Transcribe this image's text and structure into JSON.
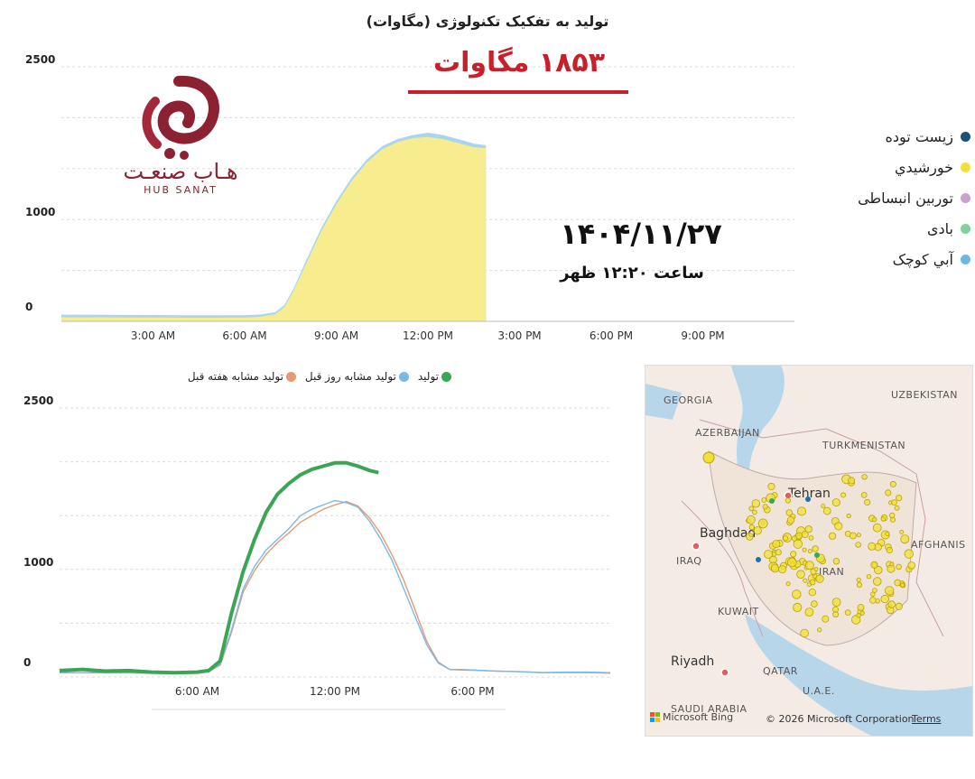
{
  "top_title": "تولید به تفکیک تکنولوژی (مگاوات)",
  "headline": "۱۸۵۳ مگاوات",
  "date": "۱۴۰۴/۱۱/۲۷",
  "time": "ساعت ۱۲:۲۰ ظهر",
  "logo": {
    "fa": "هـاب صنعـت",
    "en": "HUB SANAT"
  },
  "legend_top": [
    {
      "label": "زیست توده",
      "color": "#1f4e79"
    },
    {
      "label": "خورشيدي",
      "color": "#f2e03a"
    },
    {
      "label": "توربین انبساطی",
      "color": "#c9a0d0"
    },
    {
      "label": "بادی",
      "color": "#7fd39a"
    },
    {
      "label": "آبي كوچک",
      "color": "#6bb8e8"
    }
  ],
  "legend_bottom": [
    {
      "label": "تولید",
      "color": "#3aa655"
    },
    {
      "label": "تولید مشابه روز قبل",
      "color": "#7ab8e6"
    },
    {
      "label": "تولید مشابه هفته قبل",
      "color": "#e49a72"
    }
  ],
  "map": {
    "labels": [
      {
        "text": "GEORGIA",
        "cls": "country"
      },
      {
        "text": "AZERBAIJAN",
        "cls": "country"
      },
      {
        "text": "UZBEKISTAN",
        "cls": "country"
      },
      {
        "text": "TURKMENISTAN",
        "cls": "country"
      },
      {
        "text": "Tehran",
        "cls": "city"
      },
      {
        "text": "Baghdad",
        "cls": "city"
      },
      {
        "text": "IRAQ",
        "cls": "country"
      },
      {
        "text": "IRAN",
        "cls": "country"
      },
      {
        "text": "AFGHANIS",
        "cls": "country"
      },
      {
        "text": "KUWAIT",
        "cls": "country"
      },
      {
        "text": "Riyadh",
        "cls": "city"
      },
      {
        "text": "QATAR",
        "cls": "country"
      },
      {
        "text": "U.A.E.",
        "cls": "country"
      },
      {
        "text": "SAUDI ARABIA",
        "cls": "country"
      }
    ],
    "credit": "© 2026 Microsoft Corporation",
    "terms": "Terms",
    "bing": "Microsoft Bing"
  },
  "chart_data": [
    {
      "type": "area",
      "title": "تولید به تفکیک تکنولوژی (مگاوات)",
      "x_unit": "hour",
      "x_ticks": [
        "3:00 AM",
        "6:00 AM",
        "9:00 AM",
        "12:00 PM",
        "3:00 PM",
        "6:00 PM",
        "9:00 PM"
      ],
      "y_ticks": [
        "0",
        "1000",
        "2500"
      ],
      "ylim": [
        0,
        2500
      ],
      "xlim": [
        0,
        24
      ],
      "series": [
        {
          "name": "خورشيدي",
          "x": [
            0,
            1,
            2,
            3,
            4,
            5,
            6,
            6.5,
            7,
            7.3,
            7.6,
            8,
            8.5,
            9,
            9.5,
            10,
            10.5,
            11,
            11.5,
            12,
            12.5,
            13,
            13.5,
            13.9
          ],
          "y": [
            40,
            40,
            38,
            38,
            36,
            36,
            38,
            45,
            70,
            140,
            300,
            560,
            880,
            1150,
            1380,
            1560,
            1690,
            1760,
            1800,
            1810,
            1790,
            1750,
            1710,
            1700
          ]
        },
        {
          "name": "آبي كوچک",
          "x": [
            0,
            1,
            2,
            3,
            4,
            5,
            6,
            6.5,
            7,
            7.3,
            7.6,
            8,
            8.5,
            9,
            9.5,
            10,
            10.5,
            11,
            11.5,
            12,
            12.5,
            13,
            13.5,
            13.9
          ],
          "y": [
            65,
            65,
            63,
            62,
            60,
            60,
            60,
            66,
            90,
            160,
            320,
            590,
            910,
            1180,
            1410,
            1590,
            1720,
            1790,
            1830,
            1853,
            1830,
            1790,
            1745,
            1730
          ]
        }
      ]
    },
    {
      "type": "line",
      "x_ticks": [
        "6:00 AM",
        "12:00 PM",
        "6:00 PM"
      ],
      "y_ticks": [
        "0",
        "1000",
        "2500"
      ],
      "ylim": [
        0,
        2500
      ],
      "xlim": [
        0,
        24
      ],
      "series": [
        {
          "name": "تولید",
          "x": [
            0,
            1,
            2,
            3,
            4,
            5,
            6,
            6.5,
            7,
            7.5,
            8,
            8.5,
            9,
            9.5,
            10,
            10.5,
            11,
            11.5,
            12,
            12.5,
            13,
            13.5,
            13.9
          ],
          "y": [
            60,
            70,
            55,
            60,
            45,
            40,
            45,
            60,
            150,
            600,
            980,
            1280,
            1530,
            1700,
            1800,
            1880,
            1930,
            1960,
            1990,
            1990,
            1960,
            1920,
            1900
          ]
        },
        {
          "name": "تولید مشابه روز قبل",
          "x": [
            0,
            1,
            2,
            3,
            4,
            5,
            6,
            6.5,
            7,
            7.5,
            8,
            8.5,
            9,
            9.5,
            10,
            10.5,
            11,
            11.5,
            12,
            12.5,
            13,
            13.5,
            14,
            14.5,
            15,
            15.5,
            16,
            16.5,
            17,
            17.5,
            18,
            19,
            20,
            21,
            22,
            23,
            24
          ],
          "y": [
            40,
            40,
            38,
            38,
            36,
            36,
            38,
            50,
            120,
            440,
            820,
            1030,
            1180,
            1280,
            1380,
            1500,
            1560,
            1600,
            1640,
            1620,
            1580,
            1450,
            1280,
            1080,
            820,
            560,
            300,
            130,
            70,
            70,
            65,
            55,
            50,
            40,
            45,
            45,
            40
          ]
        },
        {
          "name": "تولید مشابه هفته قبل",
          "x": [
            0,
            1,
            2,
            3,
            4,
            5,
            6,
            6.5,
            7,
            7.5,
            8,
            8.5,
            9,
            9.5,
            10,
            10.5,
            11,
            11.5,
            12,
            12.5,
            13,
            13.5,
            14,
            14.5,
            15,
            15.5,
            16,
            16.5,
            17,
            17.5,
            18,
            19,
            20,
            21,
            22,
            23,
            24
          ],
          "y": [
            40,
            40,
            38,
            38,
            36,
            36,
            38,
            50,
            110,
            420,
            790,
            990,
            1140,
            1250,
            1340,
            1440,
            1500,
            1560,
            1600,
            1630,
            1590,
            1480,
            1330,
            1130,
            900,
            620,
            330,
            140,
            70,
            65,
            62,
            55,
            50,
            42,
            40,
            40,
            35
          ]
        }
      ]
    }
  ]
}
